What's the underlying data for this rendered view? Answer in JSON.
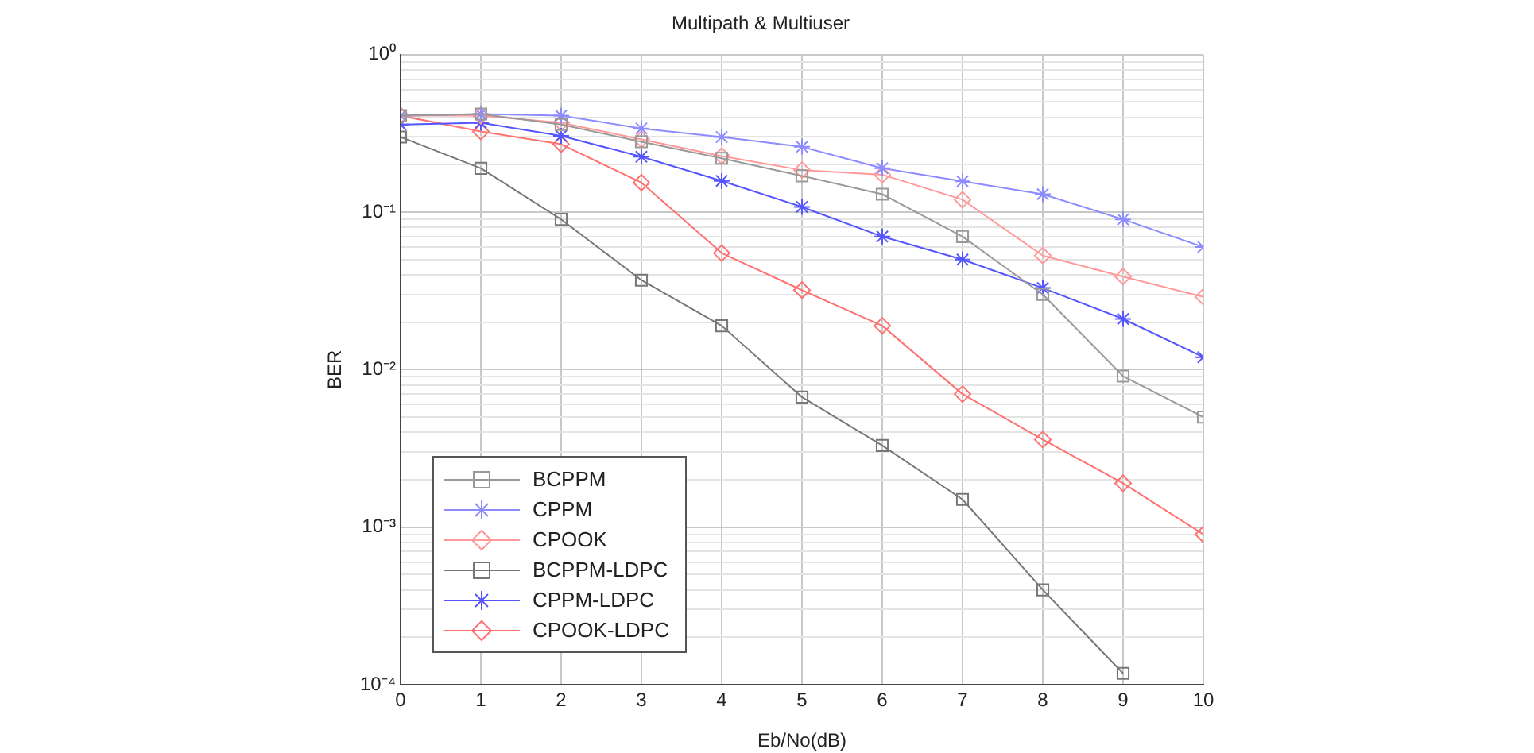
{
  "chart_data": {
    "type": "line",
    "title": "Multipath & Multiuser",
    "xlabel": "Eb/No(dB)",
    "ylabel": "BER",
    "x": [
      0,
      1,
      2,
      3,
      4,
      5,
      6,
      7,
      8,
      9,
      10
    ],
    "series": [
      {
        "name": "BCPPM",
        "color": "#999999",
        "marker": "square",
        "values": [
          0.41,
          0.42,
          0.36,
          0.28,
          0.22,
          0.17,
          0.13,
          0.07,
          0.03,
          0.0091,
          0.005
        ]
      },
      {
        "name": "CPPM",
        "color": "#8c8cff",
        "marker": "cross",
        "values": [
          0.41,
          0.42,
          0.41,
          0.34,
          0.3,
          0.26,
          0.19,
          0.157,
          0.13,
          0.09,
          0.06
        ]
      },
      {
        "name": "CPOOK",
        "color": "#ff9999",
        "marker": "diamond",
        "values": [
          0.41,
          0.41,
          0.37,
          0.29,
          0.227,
          0.185,
          0.173,
          0.12,
          0.053,
          0.039,
          0.029
        ]
      },
      {
        "name": "BCPPM-LDPC",
        "color": "#777777",
        "marker": "square",
        "values": [
          0.3,
          0.19,
          0.09,
          0.037,
          0.019,
          0.0067,
          0.0033,
          0.0015,
          0.0004,
          0.000118,
          null
        ]
      },
      {
        "name": "CPPM-LDPC",
        "color": "#5555ff",
        "marker": "cross",
        "values": [
          0.36,
          0.37,
          0.305,
          0.225,
          0.158,
          0.108,
          0.07,
          0.05,
          0.033,
          0.021,
          0.012
        ]
      },
      {
        "name": "CPOOK-LDPC",
        "color": "#ff7070",
        "marker": "diamond",
        "values": [
          0.41,
          0.325,
          0.27,
          0.154,
          0.055,
          0.032,
          0.019,
          0.007,
          0.0036,
          0.0019,
          0.0009
        ]
      }
    ],
    "xlim": [
      0,
      10
    ],
    "xticks": [
      0,
      1,
      2,
      3,
      4,
      5,
      6,
      7,
      8,
      9,
      10
    ],
    "ylim": [
      0.0001,
      1
    ],
    "yticks": [
      {
        "value": 0.0001,
        "label": "10⁻⁴"
      },
      {
        "value": 0.0002,
        "label": null
      },
      {
        "value": 0.0003,
        "label": null
      },
      {
        "value": 0.0004,
        "label": null
      },
      {
        "value": 0.0005,
        "label": null
      },
      {
        "value": 0.0006,
        "label": null
      },
      {
        "value": 0.0007,
        "label": null
      },
      {
        "value": 0.0008,
        "label": null
      },
      {
        "value": 0.0009,
        "label": null
      },
      {
        "value": 0.001,
        "label": "10⁻³"
      },
      {
        "value": 0.002,
        "label": null
      },
      {
        "value": 0.003,
        "label": null
      },
      {
        "value": 0.004,
        "label": null
      },
      {
        "value": 0.005,
        "label": null
      },
      {
        "value": 0.006,
        "label": null
      },
      {
        "value": 0.007,
        "label": null
      },
      {
        "value": 0.008,
        "label": null
      },
      {
        "value": 0.009,
        "label": null
      },
      {
        "value": 0.01,
        "label": "10⁻²"
      },
      {
        "value": 0.02,
        "label": null
      },
      {
        "value": 0.03,
        "label": null
      },
      {
        "value": 0.04,
        "label": null
      },
      {
        "value": 0.05,
        "label": null
      },
      {
        "value": 0.06,
        "label": null
      },
      {
        "value": 0.07,
        "label": null
      },
      {
        "value": 0.08,
        "label": null
      },
      {
        "value": 0.09,
        "label": null
      },
      {
        "value": 0.1,
        "label": "10⁻¹"
      },
      {
        "value": 0.2,
        "label": null
      },
      {
        "value": 0.3,
        "label": null
      },
      {
        "value": 0.4,
        "label": null
      },
      {
        "value": 0.5,
        "label": null
      },
      {
        "value": 0.6,
        "label": null
      },
      {
        "value": 0.7,
        "label": null
      },
      {
        "value": 0.8,
        "label": null
      },
      {
        "value": 0.9,
        "label": null
      },
      {
        "value": 1,
        "label": "10⁰"
      }
    ],
    "log": "y",
    "grid": true,
    "legend": "bottom left",
    "line_style": "solid"
  }
}
